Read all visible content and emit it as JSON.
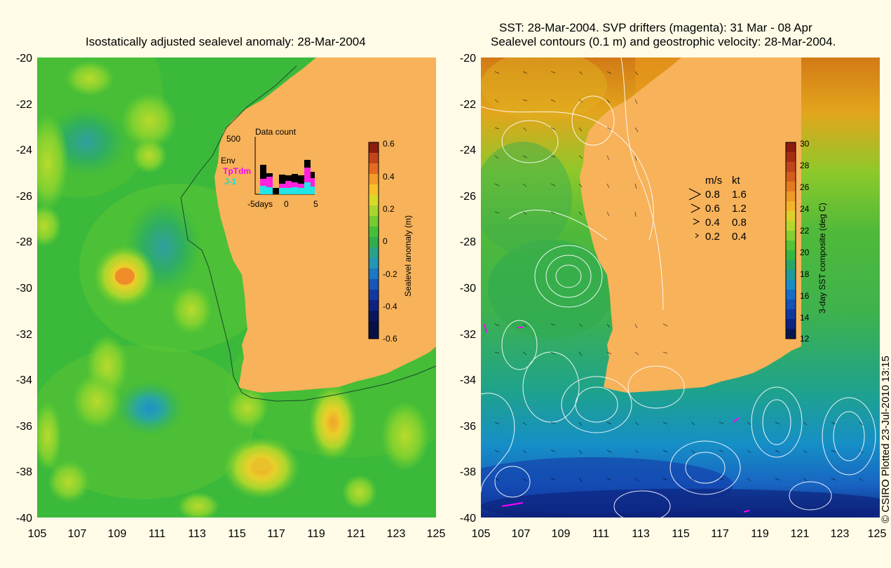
{
  "left_panel": {
    "title": "Isostatically adjusted sealevel anomaly: 28-Mar-2004",
    "y_ticks": [
      "-20",
      "-22",
      "-24",
      "-26",
      "-28",
      "-30",
      "-32",
      "-34",
      "-36",
      "-38",
      "-40"
    ],
    "x_ticks": [
      "105",
      "107",
      "109",
      "111",
      "113",
      "115",
      "117",
      "119",
      "121",
      "123",
      "125"
    ],
    "inset": {
      "title": "Data count",
      "y_max": "500",
      "series_labels": {
        "env": "Env",
        "tptdm": "TpTdm",
        "j1": "J-1"
      },
      "x_labels": {
        "left": "-5days",
        "mid": "0",
        "right": "5"
      }
    },
    "colorbar": {
      "label": "Sealevel anomaly (m)",
      "ticks": [
        "0.6",
        "0.4",
        "0.2",
        "0",
        "-0.2",
        "-0.4",
        "-0.6"
      ]
    }
  },
  "right_panel": {
    "title_line1": "SST: 28-Mar-2004. SVP drifters (magenta): 31 Mar - 08 Apr",
    "title_line2": "Sealevel contours (0.1 m) and geostrophic velocity: 28-Mar-2004.",
    "y_ticks": [
      "-20",
      "-22",
      "-24",
      "-26",
      "-28",
      "-30",
      "-32",
      "-34",
      "-36",
      "-38",
      "-40"
    ],
    "x_ticks": [
      "105",
      "107",
      "109",
      "111",
      "113",
      "115",
      "117",
      "119",
      "121",
      "123",
      "125"
    ],
    "velocity_legend": {
      "header_ms": "m/s",
      "header_kt": "kt",
      "rows": [
        {
          "ms": "0.8",
          "kt": "1.6"
        },
        {
          "ms": "0.6",
          "kt": "1.2"
        },
        {
          "ms": "0.4",
          "kt": "0.8"
        },
        {
          "ms": "0.2",
          "kt": "0.4"
        }
      ]
    },
    "colorbar": {
      "label": "3-day SST composite (deg C)",
      "ticks": [
        "30",
        "28",
        "26",
        "24",
        "22",
        "20",
        "18",
        "16",
        "14",
        "12"
      ]
    }
  },
  "credit": "© CSIRO Plotted 23-Jul-2010 13:15",
  "colors": {
    "background": "#fffbe6",
    "land": "#f7b25a",
    "sla_green": "#3bb93b",
    "drifter_magenta": "#ff00ff"
  }
}
